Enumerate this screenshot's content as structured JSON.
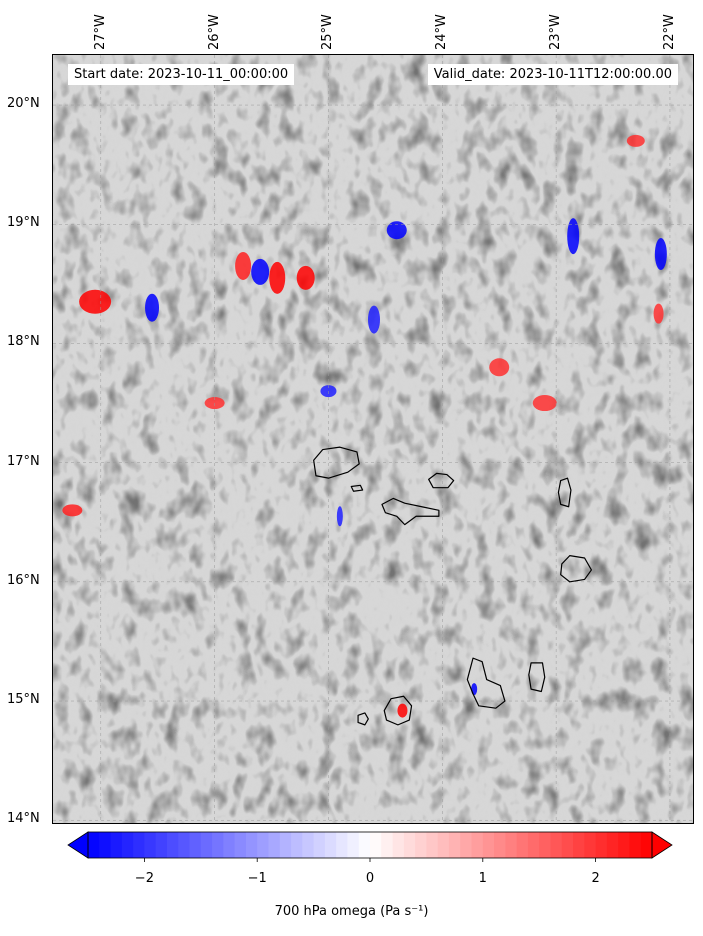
{
  "header": {
    "start_date": "Start date: 2023-10-11_00:00:00",
    "valid_date": "Valid_date: 2023-10-11T12:00:00.00"
  },
  "map": {
    "lon_ticks": [
      "27°W",
      "26°W",
      "25°W",
      "24°W",
      "23°W",
      "22°W"
    ],
    "lat_ticks": [
      "20°N",
      "19°N",
      "18°N",
      "17°N",
      "16°N",
      "15°N",
      "14°N"
    ],
    "lon_values": [
      -27,
      -26,
      -25,
      -24,
      -23,
      -22
    ],
    "lat_values": [
      20,
      19,
      18,
      17,
      16,
      15,
      14
    ],
    "lon_range": [
      -27.42,
      -21.78
    ],
    "lat_range": [
      13.96,
      20.42
    ],
    "gridlines": "dashed",
    "field_colors": {
      "negative": "#0000ff",
      "zero": "#ffffff",
      "positive": "#ff0000"
    },
    "coastline_color": "#000000",
    "islands": [
      {
        "name": "Santo Antão",
        "lon": -24.95,
        "lat": 16.97
      },
      {
        "name": "São Vicente",
        "lon": -24.0,
        "lat": 16.83
      },
      {
        "name": "Santa Luzia",
        "lon": -24.75,
        "lat": 16.78
      },
      {
        "name": "São Nicolau",
        "lon": -24.28,
        "lat": 16.6
      },
      {
        "name": "Sal",
        "lon": -22.93,
        "lat": 16.75
      },
      {
        "name": "Boa Vista",
        "lon": -22.83,
        "lat": 16.1
      },
      {
        "name": "Maio",
        "lon": -23.17,
        "lat": 15.2
      },
      {
        "name": "Santiago",
        "lon": -23.63,
        "lat": 15.08
      },
      {
        "name": "Fogo",
        "lon": -24.39,
        "lat": 14.92
      },
      {
        "name": "Brava",
        "lon": -24.7,
        "lat": 14.85
      }
    ]
  },
  "colorbar": {
    "label": "700 hPa omega (Pa s⁻¹)",
    "ticks": [
      "−2",
      "−1",
      "0",
      "1",
      "2"
    ],
    "tick_values": [
      -2,
      -1,
      0,
      1,
      2
    ],
    "range": [
      -2.5,
      2.5
    ],
    "extend": "both",
    "cmap": "bwr"
  }
}
